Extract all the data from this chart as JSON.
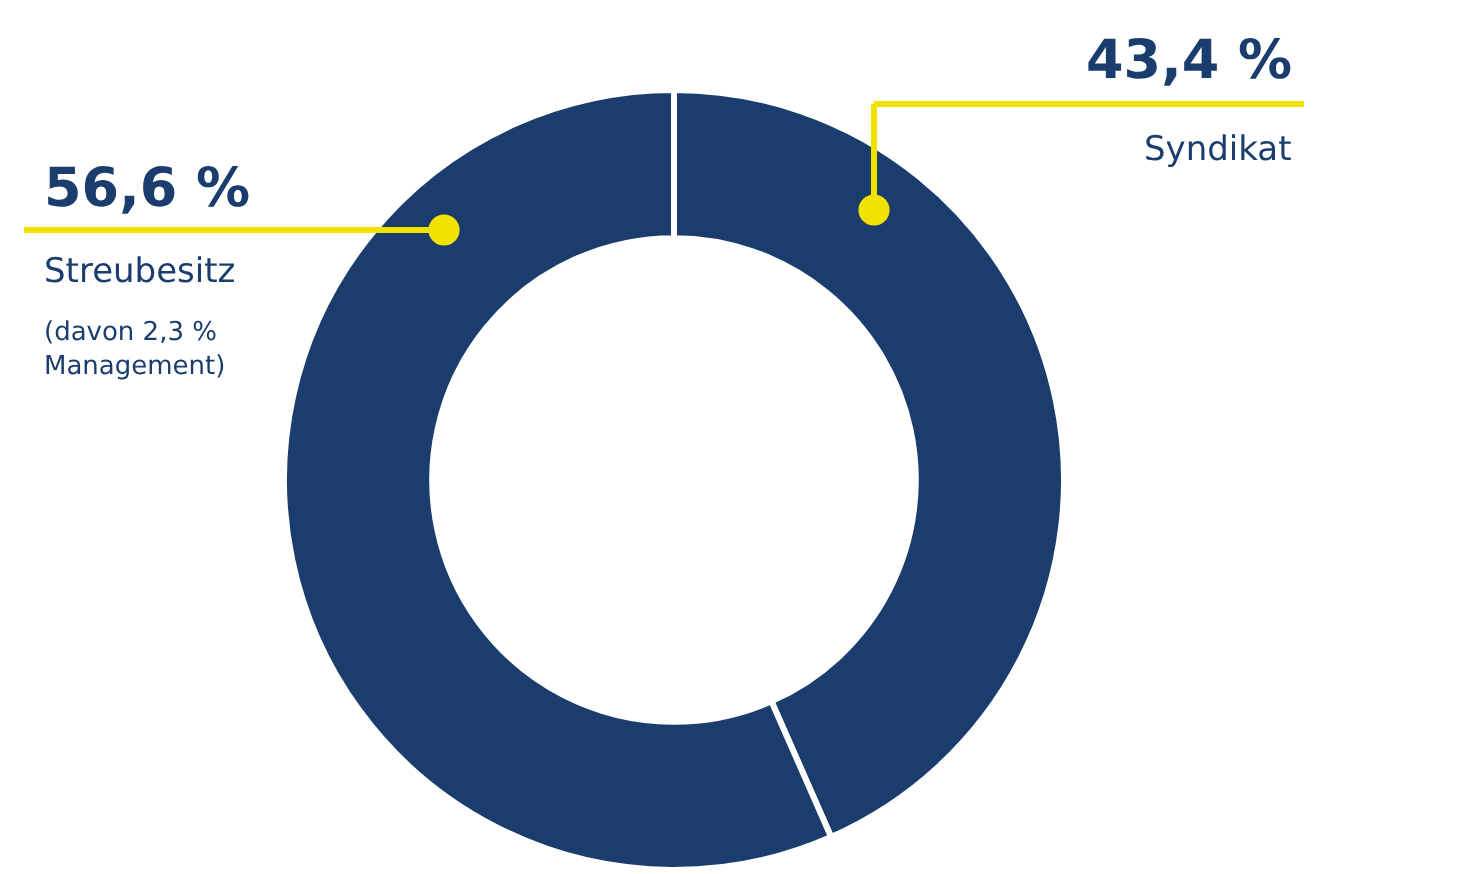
{
  "chart_data": {
    "type": "donut",
    "categories": [
      "Syndikat",
      "Streubesitz"
    ],
    "values": [
      43.4,
      56.6
    ],
    "colors": [
      "#1a3d6e",
      "#1a3d6e"
    ],
    "value_labels": [
      "43,4 %",
      "56,6 %"
    ],
    "annotations": [
      "(davon 2,3 %\nManagement)"
    ],
    "legend": false
  }
}
